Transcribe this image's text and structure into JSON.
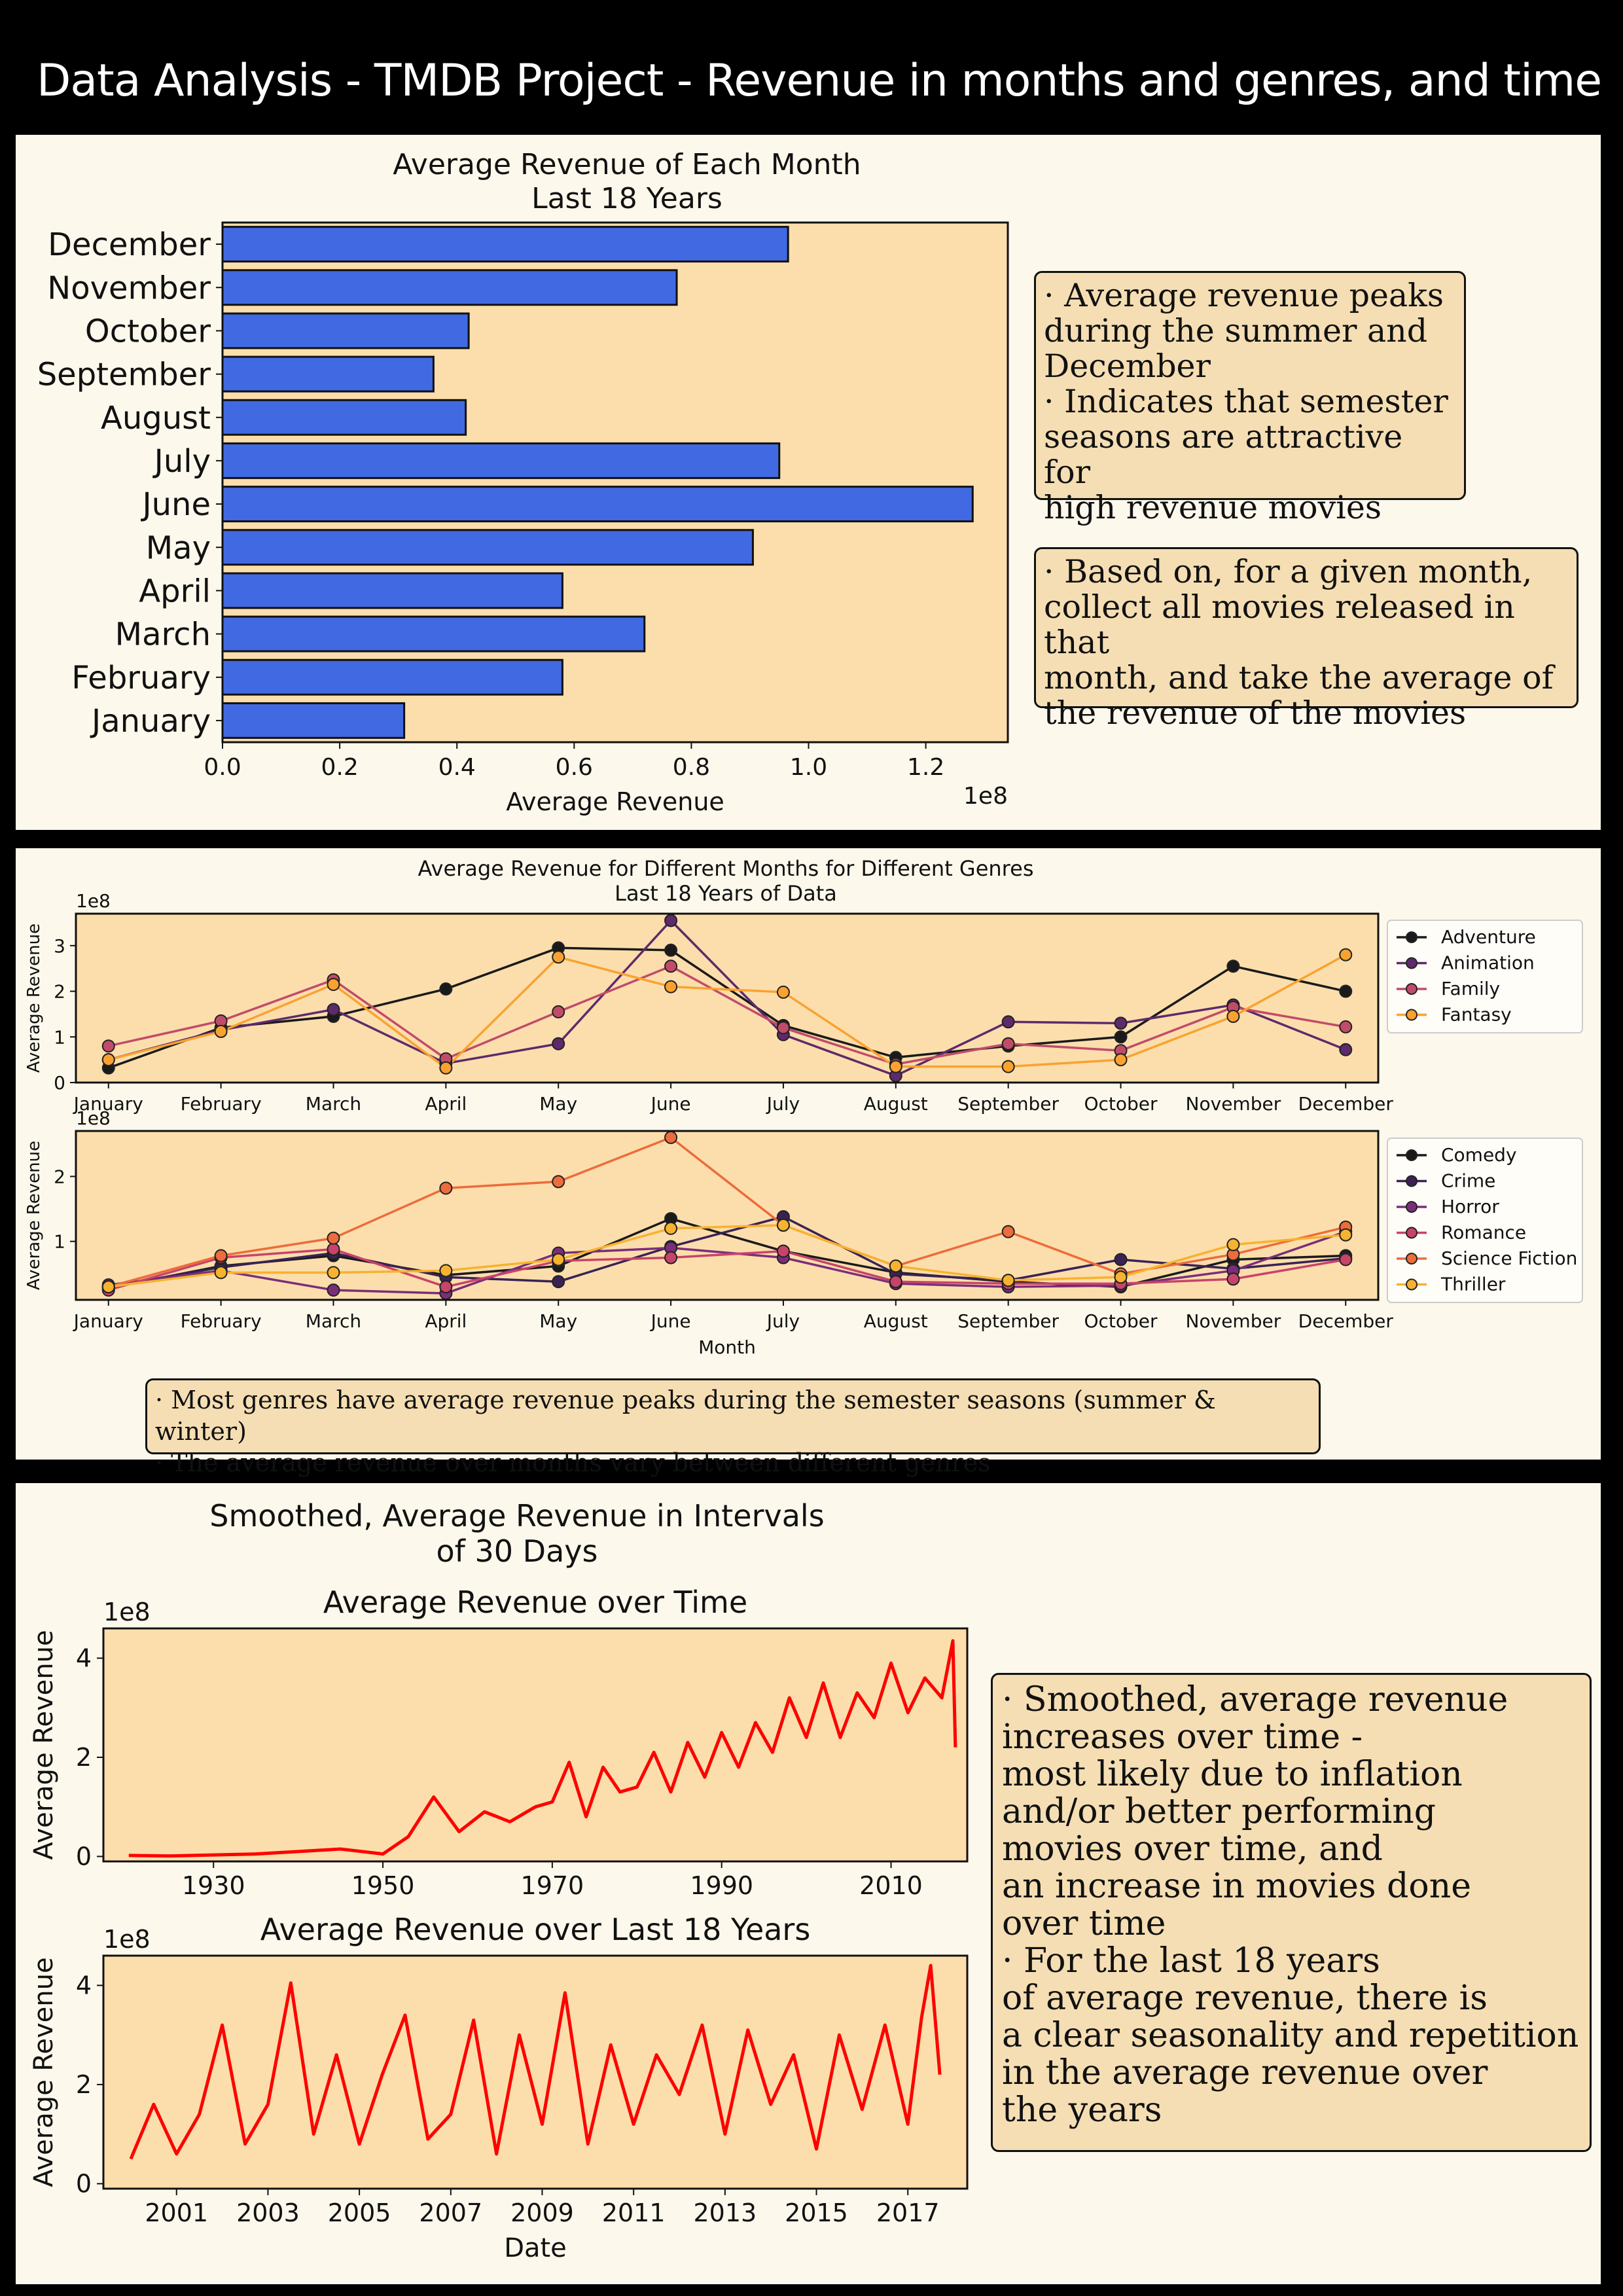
{
  "page_title": "Data Analysis - TMDB Project - Revenue in months and genres, and time",
  "colors": {
    "plot_bg": "#fcdeac",
    "panel_bg": "#fdf8ec",
    "bar_fill": "#4169e1",
    "note_bg": "#f5deb3",
    "time_line": "#ff0000"
  },
  "panel1": {
    "notes": [
      "· Average revenue peaks\nduring the summer and\nDecember\n· Indicates that semester\nseasons are attractive for\nhigh revenue movies",
      "· Based on, for a given month,\ncollect all movies released in that\nmonth, and take the average of\nthe revenue of the movies"
    ]
  },
  "panel2": {
    "note": "· Most genres have average revenue peaks during the semester seasons (summer & winter)\n· The average revenue over months vary between different genres"
  },
  "panel3": {
    "heading_line1": "Smoothed, Average Revenue in Intervals",
    "heading_line2": "of 30 Days",
    "note": "· Smoothed, average revenue\nincreases over time -\nmost likely due to inflation\nand/or better performing\nmovies over time, and\nan increase in movies done\nover time\n· For the last 18 years\nof average revenue, there is\na clear seasonality and repetition\nin the average revenue over\nthe years"
  },
  "chart_data": [
    {
      "type": "bar",
      "orientation": "horizontal",
      "title": "Average Revenue of Each Month\nLast 18 Years",
      "xlabel": "Average Revenue",
      "ylabel": "",
      "offset_label": "1e8",
      "xlim": [
        0,
        1.34
      ],
      "xticks": [
        0.0,
        0.2,
        0.4,
        0.6,
        0.8,
        1.0,
        1.2
      ],
      "categories": [
        "January",
        "February",
        "March",
        "April",
        "May",
        "June",
        "July",
        "August",
        "September",
        "October",
        "November",
        "December"
      ],
      "values": [
        0.31,
        0.58,
        0.72,
        0.58,
        0.905,
        1.28,
        0.95,
        0.415,
        0.36,
        0.42,
        0.775,
        0.965
      ],
      "color": "#4169e1",
      "grid": false,
      "legend": "none"
    },
    {
      "type": "line",
      "title": "Average Revenue for Different Months for Different Genres\nLast 18 Years of Data",
      "xlabel": "",
      "ylabel": "Average Revenue",
      "offset_label": "1e8",
      "ylim": [
        0,
        3.7
      ],
      "yticks": [
        0,
        1,
        2,
        3
      ],
      "categories": [
        "January",
        "February",
        "March",
        "April",
        "May",
        "June",
        "July",
        "August",
        "September",
        "October",
        "November",
        "December"
      ],
      "legend": "right",
      "series": [
        {
          "name": "Adventure",
          "color": "#1a1a1a",
          "values": [
            0.32,
            1.2,
            1.45,
            2.05,
            2.95,
            2.9,
            1.25,
            0.55,
            0.8,
            1.0,
            2.55,
            2.0
          ]
        },
        {
          "name": "Animation",
          "color": "#5e2a6b",
          "values": [
            0.5,
            1.15,
            1.6,
            0.42,
            0.85,
            3.55,
            1.05,
            0.15,
            1.33,
            1.3,
            1.7,
            0.72
          ]
        },
        {
          "name": "Family",
          "color": "#c04c6a",
          "values": [
            0.8,
            1.35,
            2.25,
            0.52,
            1.55,
            2.55,
            1.2,
            0.4,
            0.85,
            0.7,
            1.65,
            1.22
          ]
        },
        {
          "name": "Fantasy",
          "color": "#f9a230",
          "values": [
            0.5,
            1.12,
            2.15,
            0.32,
            2.75,
            2.1,
            1.98,
            0.35,
            0.35,
            0.5,
            1.45,
            2.8
          ]
        }
      ]
    },
    {
      "type": "line",
      "title": "",
      "xlabel": "Month",
      "ylabel": "Average Revenue",
      "offset_label": "1e8",
      "ylim": [
        0.1,
        2.7
      ],
      "yticks": [
        1,
        2
      ],
      "categories": [
        "January",
        "February",
        "March",
        "April",
        "May",
        "June",
        "July",
        "August",
        "September",
        "October",
        "November",
        "December"
      ],
      "legend": "right",
      "series": [
        {
          "name": "Comedy",
          "color": "#1a1a1a",
          "values": [
            0.28,
            0.62,
            0.78,
            0.48,
            0.62,
            1.35,
            0.85,
            0.52,
            0.38,
            0.3,
            0.72,
            0.78
          ]
        },
        {
          "name": "Crime",
          "color": "#3a2255",
          "values": [
            0.3,
            0.6,
            0.82,
            0.45,
            0.38,
            0.92,
            1.38,
            0.5,
            0.4,
            0.72,
            0.58,
            0.74
          ]
        },
        {
          "name": "Horror",
          "color": "#7a2e7a",
          "values": [
            0.33,
            0.55,
            0.25,
            0.2,
            0.82,
            0.9,
            0.75,
            0.35,
            0.3,
            0.32,
            0.55,
            1.15
          ]
        },
        {
          "name": "Romance",
          "color": "#c8436a",
          "values": [
            0.25,
            0.75,
            0.88,
            0.3,
            0.7,
            0.75,
            0.85,
            0.38,
            0.35,
            0.35,
            0.42,
            0.72
          ]
        },
        {
          "name": "Science Fiction",
          "color": "#ec6c3c",
          "values": [
            0.3,
            0.78,
            1.05,
            1.82,
            1.92,
            2.6,
            1.25,
            0.62,
            1.15,
            0.5,
            0.8,
            1.22
          ]
        },
        {
          "name": "Thriller",
          "color": "#f7b22f",
          "values": [
            0.3,
            0.52,
            0.52,
            0.55,
            0.72,
            1.2,
            1.25,
            0.62,
            0.4,
            0.45,
            0.95,
            1.1
          ]
        }
      ]
    },
    {
      "type": "line",
      "title": "Average Revenue over Time",
      "xlabel": "",
      "ylabel": "Average Revenue",
      "offset_label": "1e8",
      "xlim": [
        1917,
        2019
      ],
      "ylim": [
        -0.1,
        4.6
      ],
      "xticks": [
        1930,
        1950,
        1970,
        1990,
        2010
      ],
      "yticks": [
        0,
        2,
        4
      ],
      "color": "#ff0000",
      "series": [
        {
          "x": [
            1920,
            1925,
            1930,
            1935,
            1940,
            1945,
            1950,
            1953,
            1956,
            1959,
            1962,
            1965,
            1968,
            1970,
            1972,
            1974,
            1976,
            1978,
            1980,
            1982,
            1984,
            1986,
            1988,
            1990,
            1992,
            1994,
            1996,
            1998,
            2000,
            2002,
            2004,
            2006,
            2008,
            2010,
            2012,
            2014,
            2016,
            2017.3,
            2017.6
          ],
          "y": [
            0.02,
            0.01,
            0.03,
            0.05,
            0.1,
            0.15,
            0.05,
            0.4,
            1.2,
            0.5,
            0.9,
            0.7,
            1.0,
            1.1,
            1.9,
            0.8,
            1.8,
            1.3,
            1.4,
            2.1,
            1.3,
            2.3,
            1.6,
            2.5,
            1.8,
            2.7,
            2.1,
            3.2,
            2.4,
            3.5,
            2.4,
            3.3,
            2.8,
            3.9,
            2.9,
            3.6,
            3.2,
            4.35,
            2.2
          ]
        }
      ],
      "grid": false,
      "legend": "none"
    },
    {
      "type": "line",
      "title": "Average Revenue over Last 18 Years",
      "xlabel": "Date",
      "ylabel": "Average Revenue",
      "offset_label": "1e8",
      "xlim": [
        1999.4,
        2018.3
      ],
      "ylim": [
        -0.1,
        4.6
      ],
      "xticks": [
        2001,
        2003,
        2005,
        2007,
        2009,
        2011,
        2013,
        2015,
        2017
      ],
      "yticks": [
        0,
        2,
        4
      ],
      "color": "#ff0000",
      "series": [
        {
          "x": [
            2000.0,
            2000.5,
            2001.0,
            2001.5,
            2002.0,
            2002.5,
            2003.0,
            2003.5,
            2004.0,
            2004.5,
            2005.0,
            2005.5,
            2006.0,
            2006.5,
            2007.0,
            2007.5,
            2008.0,
            2008.5,
            2009.0,
            2009.5,
            2010.0,
            2010.5,
            2011.0,
            2011.5,
            2012.0,
            2012.5,
            2013.0,
            2013.5,
            2014.0,
            2014.5,
            2015.0,
            2015.5,
            2016.0,
            2016.5,
            2017.0,
            2017.3,
            2017.5,
            2017.7
          ],
          "y": [
            0.5,
            1.6,
            0.6,
            1.4,
            3.2,
            0.8,
            1.6,
            4.05,
            1.0,
            2.6,
            0.8,
            2.2,
            3.4,
            0.9,
            1.4,
            3.3,
            0.6,
            3.0,
            1.2,
            3.85,
            0.8,
            2.8,
            1.2,
            2.6,
            1.8,
            3.2,
            1.0,
            3.1,
            1.6,
            2.6,
            0.7,
            3.0,
            1.5,
            3.2,
            1.2,
            3.35,
            4.4,
            2.2
          ]
        }
      ],
      "grid": false,
      "legend": "none"
    }
  ]
}
